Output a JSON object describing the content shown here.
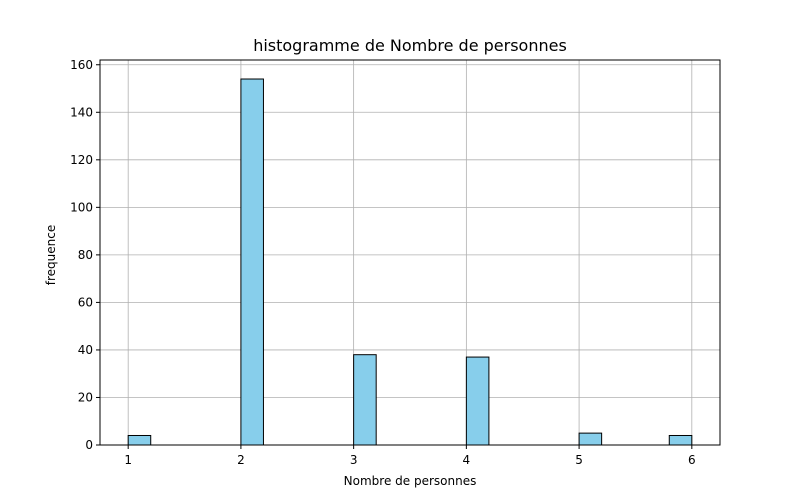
{
  "chart_data": {
    "type": "bar",
    "title": "histogramme de Nombre de personnes",
    "xlabel": "Nombre de personnes",
    "ylabel": "frequence",
    "xlim": [
      0.75,
      6.25
    ],
    "ylim": [
      0,
      162
    ],
    "xticks": [
      1,
      2,
      3,
      4,
      5,
      6
    ],
    "yticks": [
      0,
      20,
      40,
      60,
      80,
      100,
      120,
      140,
      160
    ],
    "grid": true,
    "bar_color": "#87ceeb",
    "edge_color": "#000000",
    "bins": [
      {
        "x0": 1.0,
        "x1": 1.2,
        "value": 4
      },
      {
        "x0": 2.0,
        "x1": 2.2,
        "value": 154
      },
      {
        "x0": 3.0,
        "x1": 3.2,
        "value": 38
      },
      {
        "x0": 4.0,
        "x1": 4.2,
        "value": 37
      },
      {
        "x0": 5.0,
        "x1": 5.2,
        "value": 5
      },
      {
        "x0": 5.8,
        "x1": 6.0,
        "value": 4
      }
    ]
  }
}
